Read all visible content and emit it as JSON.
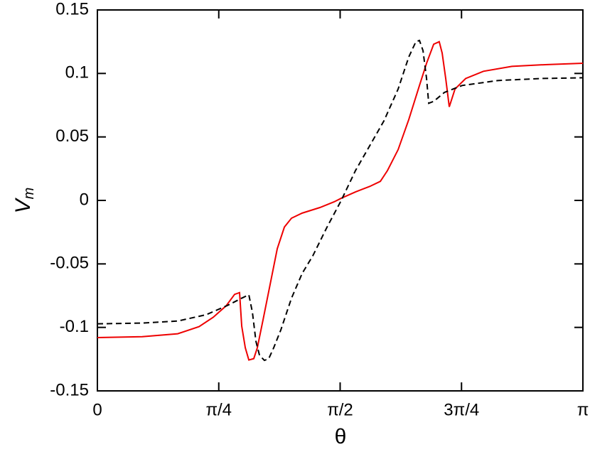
{
  "chart_data": {
    "type": "line",
    "x_label": "θ",
    "y_label": {
      "main": "V",
      "sub": "m"
    },
    "xlim": [
      0,
      3.14159
    ],
    "ylim": [
      -0.15,
      0.15
    ],
    "xticks": [
      0,
      {
        "value": 0.7854,
        "label": "π/4"
      },
      {
        "value": 1.5708,
        "label": "π/2"
      },
      {
        "value": 2.3562,
        "label": "3π/4"
      },
      {
        "value": 3.14159,
        "label": "π"
      }
    ],
    "yticks": [
      -0.15,
      -0.1,
      -0.05,
      0,
      0.05,
      0.1,
      0.15
    ],
    "series": [
      {
        "color": "#ee0000",
        "dashed": false,
        "x": [
          0,
          0.29,
          0.52,
          0.658,
          0.75,
          0.833,
          0.888,
          0.92,
          0.934,
          0.957,
          0.98,
          1.012,
          1.035,
          1.072,
          1.118,
          1.164,
          1.21,
          1.256,
          1.325,
          1.44,
          1.532,
          1.578,
          1.67,
          1.762,
          1.831,
          1.877,
          1.946,
          2.015,
          2.084,
          2.13,
          2.176,
          2.212,
          2.231,
          2.254,
          2.277,
          2.314,
          2.383,
          2.498,
          2.682,
          2.912,
          3.142
        ],
        "values": [
          -0.108,
          -0.1073,
          -0.105,
          -0.0994,
          -0.092,
          -0.083,
          -0.074,
          -0.0726,
          -0.099,
          -0.116,
          -0.1257,
          -0.1246,
          -0.116,
          -0.094,
          -0.066,
          -0.038,
          -0.021,
          -0.014,
          -0.01,
          -0.0056,
          -0.0011,
          0.0017,
          0.0067,
          0.011,
          0.015,
          0.0235,
          0.04,
          0.0637,
          0.0905,
          0.108,
          0.123,
          0.125,
          0.116,
          0.096,
          0.0737,
          0.0877,
          0.096,
          0.1017,
          0.1056,
          0.107,
          0.108
        ]
      },
      {
        "color": "#000000",
        "dashed": true,
        "x": [
          0,
          0.29,
          0.52,
          0.704,
          0.842,
          0.934,
          0.98,
          1.003,
          1.026,
          1.049,
          1.081,
          1.109,
          1.141,
          1.187,
          1.256,
          1.325,
          1.394,
          1.486,
          1.578,
          1.67,
          1.762,
          1.854,
          1.946,
          2.015,
          2.061,
          2.084,
          2.107,
          2.13,
          2.144,
          2.176,
          2.245,
          2.36,
          2.59,
          2.866,
          3.142
        ],
        "values": [
          -0.0972,
          -0.0966,
          -0.095,
          -0.09,
          -0.0827,
          -0.077,
          -0.0743,
          -0.088,
          -0.111,
          -0.122,
          -0.126,
          -0.1246,
          -0.116,
          -0.102,
          -0.077,
          -0.0575,
          -0.0436,
          -0.021,
          0,
          0.0235,
          0.043,
          0.0626,
          0.0877,
          0.113,
          0.125,
          0.126,
          0.118,
          0.096,
          0.0765,
          0.078,
          0.085,
          0.0905,
          0.0944,
          0.096,
          0.0966
        ]
      }
    ]
  }
}
